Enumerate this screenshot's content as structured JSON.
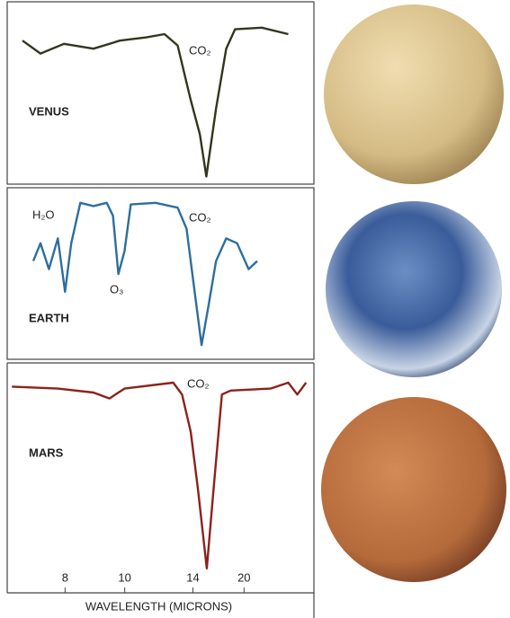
{
  "chart_data": [
    {
      "type": "line",
      "label": "VENUS",
      "annotations": [
        "CO₂"
      ],
      "xscale": "reciprocal",
      "xlim": [
        6.7,
        45
      ],
      "ylim": [
        0,
        100
      ],
      "series": [
        {
          "color": "#33361c",
          "x": [
            7.0,
            7.39,
            7.97,
            8.84,
            9.8,
            11.0,
            12.0,
            12.85,
            13.8,
            14.6,
            15.2,
            16.2,
            17.4,
            18.6,
            23.5,
            31.8
          ],
          "values": [
            86,
            78,
            84,
            81,
            86,
            88,
            90,
            83,
            50,
            28,
            2,
            44,
            81,
            93,
            94,
            90
          ]
        }
      ]
    },
    {
      "type": "line",
      "label": "EARTH",
      "annotations": [
        "H₂O",
        "CO₂",
        "O₃"
      ],
      "xscale": "reciprocal",
      "xlim": [
        6.7,
        45
      ],
      "ylim": [
        0,
        100
      ],
      "series": [
        {
          "color": "#2e6e9e",
          "x": [
            7.23,
            7.39,
            7.59,
            7.81,
            8.0,
            8.17,
            8.43,
            8.84,
            9.3,
            9.53,
            9.74,
            9.99,
            10.26,
            11.48,
            12.85,
            13.5,
            14.2,
            14.75,
            15.43,
            16.2,
            17.4,
            18.9,
            20.8,
            22.5
          ],
          "values": [
            58,
            69,
            53,
            72,
            39,
            69,
            94,
            92,
            94,
            86,
            50,
            64,
            93,
            94,
            91,
            78,
            36,
            6,
            31,
            58,
            72,
            69,
            53,
            58
          ]
        }
      ]
    },
    {
      "type": "line",
      "label": "MARS",
      "annotations": [
        "CO₂"
      ],
      "xscale": "reciprocal",
      "xlim": [
        6.7,
        45
      ],
      "ylim": [
        0,
        100
      ],
      "xticks": [
        8,
        10,
        14,
        20
      ],
      "xlabel": "WAVELENGTH (MICRONS)",
      "series": [
        {
          "color": "#8b221c",
          "x": [
            6.79,
            7.81,
            8.84,
            9.4,
            9.99,
            12.55,
            13.16,
            13.83,
            14.43,
            15.24,
            15.97,
            16.87,
            17.99,
            25.7,
            31.8,
            36.1,
            41.7
          ],
          "values": [
            93,
            92,
            90,
            87,
            92,
            95,
            89,
            70,
            41,
            1,
            43,
            89,
            91,
            92,
            95,
            89,
            95
          ]
        }
      ]
    }
  ]
}
